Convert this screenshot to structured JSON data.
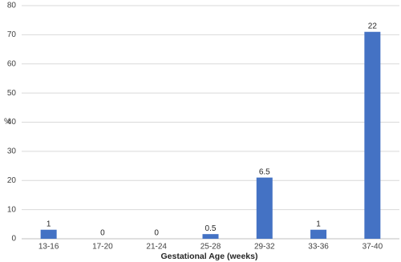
{
  "chart_data": {
    "type": "bar",
    "x_label": "Gestational Age (weeks)",
    "y_label": "%",
    "categories": [
      "13-16",
      "17-20",
      "21-24",
      "25-28",
      "29-32",
      "33-36",
      "37-40"
    ],
    "values": [
      3.1,
      0,
      0,
      1.6,
      21,
      3.1,
      71
    ],
    "counts": [
      1,
      0,
      0,
      0.5,
      6.5,
      1,
      22
    ],
    "color": "#4472c4",
    "ylim": [
      0,
      80
    ],
    "yticks": [
      0,
      10,
      20,
      30,
      40,
      50,
      60,
      70,
      80
    ],
    "grid": true
  }
}
